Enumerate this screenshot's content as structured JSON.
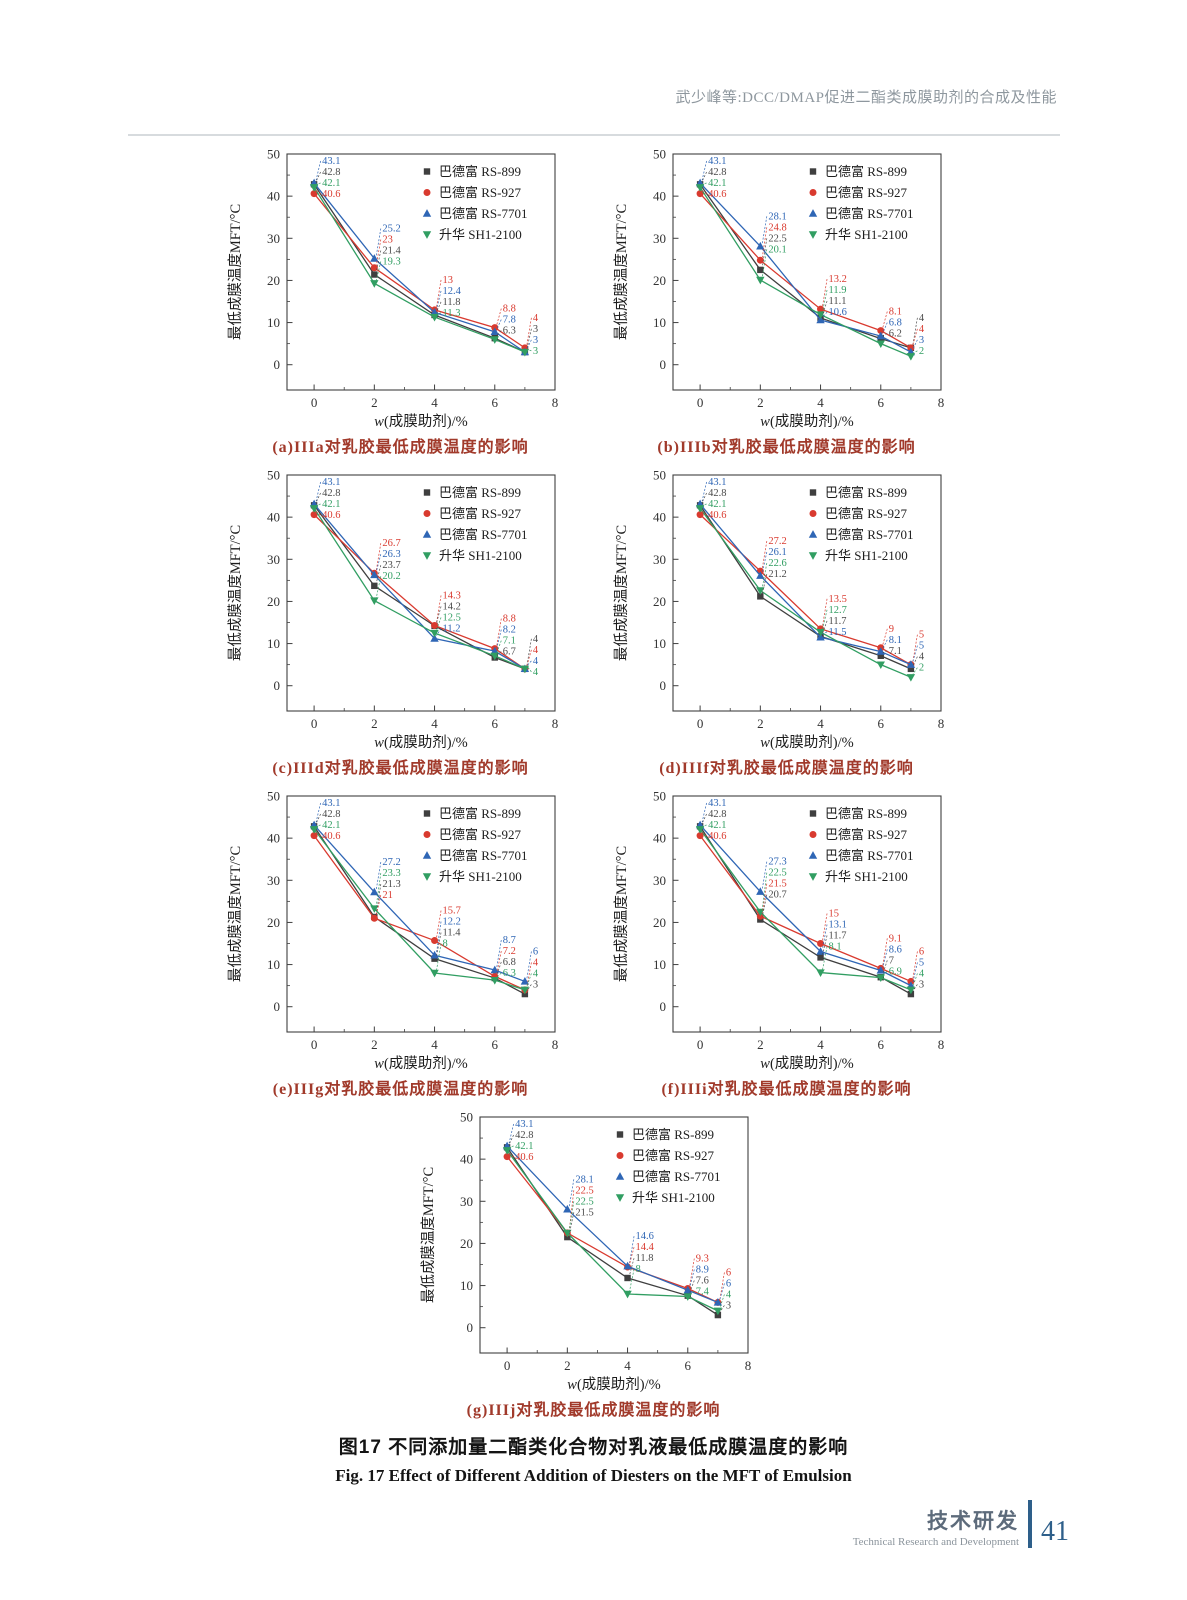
{
  "page": {
    "header": {
      "title": "武少峰等:DCC/DMAP促进二酯类成膜助剂的合成及性能"
    },
    "figure_title_zh": "图17  不同添加量二酯类化合物对乳液最低成膜温度的影响",
    "figure_title_en": "Fig. 17  Effect of Different Addition of Diesters on the MFT of Emulsion",
    "footer": {
      "label_zh": "技术研发",
      "label_en": "Technical Research and Development",
      "page_number": "41"
    }
  },
  "chart_common": {
    "type": "line",
    "x": [
      0,
      2,
      4,
      6,
      7
    ],
    "xlabel": "w(成膜助剂)/%",
    "ylabel": "最低成膜温度MFT/°C",
    "xticks": [
      0,
      2,
      4,
      6,
      8
    ],
    "xminor": [
      1,
      3,
      5,
      7
    ],
    "yticks": [
      0,
      10,
      20,
      30,
      40,
      50
    ],
    "yminor": [
      5,
      15,
      25,
      35,
      45
    ],
    "xlim": [
      -0.9,
      8
    ],
    "ylim": [
      -6,
      50
    ],
    "grid": false,
    "legend_position": "top-right",
    "series_meta": [
      {
        "name": "巴德富 RS-899",
        "color": "#3f3f3f",
        "label_color": "#4a4a4a",
        "marker": "square"
      },
      {
        "name": "巴德富 RS-927",
        "color": "#d93a2f",
        "label_color": "#d93a2f",
        "marker": "circle"
      },
      {
        "name": "巴德富 RS-7701",
        "color": "#2f66b5",
        "label_color": "#2f66b5",
        "marker": "triangle-up"
      },
      {
        "name": "升华 SH1-2100",
        "color": "#319e62",
        "label_color": "#319e62",
        "marker": "triangle-down"
      }
    ]
  },
  "chart_data": [
    {
      "caption": {
        "prefix": "(a)",
        "code": "IIIa",
        "text": "对乳胶最低成膜温度的影响"
      },
      "series": [
        {
          "name": "巴德富 RS-899",
          "values": [
            42.8,
            21.4,
            11.8,
            6.3,
            3
          ],
          "labels": [
            "42.8",
            "21.4",
            "11.8",
            "6.3",
            "3"
          ]
        },
        {
          "name": "巴德富 RS-927",
          "values": [
            40.6,
            23,
            13,
            8.8,
            4
          ],
          "labels": [
            "40.6",
            "23",
            "13",
            "8.8",
            "4"
          ]
        },
        {
          "name": "巴德富 RS-7701",
          "values": [
            43.1,
            25.2,
            12.4,
            7.8,
            3
          ],
          "labels": [
            "43.1",
            "25.2",
            "12.4",
            "7.8",
            "3"
          ]
        },
        {
          "name": "升华 SH1-2100",
          "values": [
            42.1,
            19.3,
            11.3,
            6,
            3
          ],
          "labels": [
            "42.1",
            "19.3",
            "11.3",
            "",
            "3"
          ]
        }
      ]
    },
    {
      "caption": {
        "prefix": "(b)",
        "code": "IIIb",
        "text": "对乳胶最低成膜温度的影响"
      },
      "series": [
        {
          "name": "巴德富 RS-899",
          "values": [
            42.8,
            22.5,
            11.1,
            6.2,
            4
          ],
          "labels": [
            "42.8",
            "22.5",
            "11.1",
            "6.2",
            "4"
          ]
        },
        {
          "name": "巴德富 RS-927",
          "values": [
            40.6,
            24.8,
            13.2,
            8.1,
            4
          ],
          "labels": [
            "40.6",
            "24.8",
            "13.2",
            "8.1",
            "4"
          ]
        },
        {
          "name": "巴德富 RS-7701",
          "values": [
            43.1,
            28.1,
            10.6,
            6.8,
            3
          ],
          "labels": [
            "43.1",
            "28.1",
            "10.6",
            "6.8",
            "3"
          ]
        },
        {
          "name": "升华 SH1-2100",
          "values": [
            42.1,
            20.1,
            11.9,
            5,
            2
          ],
          "labels": [
            "42.1",
            "20.1",
            "11.9",
            "",
            "2"
          ]
        }
      ]
    },
    {
      "caption": {
        "prefix": "(c)",
        "code": "IIId",
        "text": "对乳胶最低成膜温度的影响"
      },
      "series": [
        {
          "name": "巴德富 RS-899",
          "values": [
            42.8,
            23.7,
            14.2,
            6.7,
            4
          ],
          "labels": [
            "42.8",
            "23.7",
            "14.2",
            "6.7",
            "4"
          ]
        },
        {
          "name": "巴德富 RS-927",
          "values": [
            40.6,
            26.7,
            14.3,
            8.8,
            4
          ],
          "labels": [
            "40.6",
            "26.7",
            "14.3",
            "8.8",
            "4"
          ]
        },
        {
          "name": "巴德富 RS-7701",
          "values": [
            43.1,
            26.3,
            11.2,
            8.2,
            4
          ],
          "labels": [
            "43.1",
            "26.3",
            "11.2",
            "8.2",
            "4"
          ]
        },
        {
          "name": "升华 SH1-2100",
          "values": [
            42.1,
            20.2,
            12.5,
            7.1,
            4
          ],
          "labels": [
            "42.1",
            "20.2",
            "12.5",
            "7.1",
            "4"
          ]
        }
      ]
    },
    {
      "caption": {
        "prefix": "(d)",
        "code": "IIIf",
        "text": "对乳胶最低成膜温度的影响"
      },
      "series": [
        {
          "name": "巴德富 RS-899",
          "values": [
            42.8,
            21.2,
            11.7,
            7.1,
            4
          ],
          "labels": [
            "42.8",
            "21.2",
            "11.7",
            "7.1",
            "4"
          ]
        },
        {
          "name": "巴德富 RS-927",
          "values": [
            40.6,
            27.2,
            13.5,
            9,
            5
          ],
          "labels": [
            "40.6",
            "27.2",
            "13.5",
            "9",
            "5"
          ]
        },
        {
          "name": "巴德富 RS-7701",
          "values": [
            43.1,
            26.1,
            11.5,
            8.1,
            5
          ],
          "labels": [
            "43.1",
            "26.1",
            "11.5",
            "8.1",
            "5"
          ]
        },
        {
          "name": "升华 SH1-2100",
          "values": [
            42.1,
            22.6,
            12.7,
            5,
            2
          ],
          "labels": [
            "42.1",
            "22.6",
            "12.7",
            "",
            "2"
          ]
        }
      ]
    },
    {
      "caption": {
        "prefix": "(e)",
        "code": "IIIg",
        "text": "对乳胶最低成膜温度的影响"
      },
      "series": [
        {
          "name": "巴德富 RS-899",
          "values": [
            42.8,
            21.3,
            11.4,
            6.8,
            3
          ],
          "labels": [
            "42.8",
            "21.3",
            "11.4",
            "6.8",
            "3"
          ]
        },
        {
          "name": "巴德富 RS-927",
          "values": [
            40.6,
            21,
            15.7,
            7.2,
            4
          ],
          "labels": [
            "40.6",
            "21",
            "15.7",
            "7.2",
            "4"
          ]
        },
        {
          "name": "巴德富 RS-7701",
          "values": [
            43.1,
            27.2,
            12.2,
            8.7,
            6
          ],
          "labels": [
            "43.1",
            "27.2",
            "12.2",
            "8.7",
            "6"
          ]
        },
        {
          "name": "升华 SH1-2100",
          "values": [
            42.1,
            23.3,
            8,
            6.3,
            4
          ],
          "labels": [
            "42.1",
            "23.3",
            "8",
            "6.3",
            "4"
          ]
        }
      ]
    },
    {
      "caption": {
        "prefix": "(f)",
        "code": "IIIi",
        "text": "对乳胶最低成膜温度的影响"
      },
      "series": [
        {
          "name": "巴德富 RS-899",
          "values": [
            42.8,
            20.7,
            11.7,
            7,
            3
          ],
          "labels": [
            "42.8",
            "20.7",
            "11.7",
            "7",
            "3"
          ]
        },
        {
          "name": "巴德富 RS-927",
          "values": [
            40.6,
            21.5,
            15,
            9.1,
            6
          ],
          "labels": [
            "40.6",
            "21.5",
            "15",
            "9.1",
            "6"
          ]
        },
        {
          "name": "巴德富 RS-7701",
          "values": [
            43.1,
            27.3,
            13.1,
            8.6,
            5
          ],
          "labels": [
            "43.1",
            "27.3",
            "13.1",
            "8.6",
            "5"
          ]
        },
        {
          "name": "升华 SH1-2100",
          "values": [
            42.1,
            22.5,
            8.1,
            6.9,
            4
          ],
          "labels": [
            "42.1",
            "22.5",
            "8.1",
            "6.9",
            "4"
          ]
        }
      ]
    },
    {
      "caption": {
        "prefix": "(g)",
        "code": "IIIj",
        "text": "对乳胶最低成膜温度的影响"
      },
      "series": [
        {
          "name": "巴德富 RS-899",
          "values": [
            42.8,
            21.5,
            11.8,
            7.6,
            3
          ],
          "labels": [
            "42.8",
            "21.5",
            "11.8",
            "7.6",
            "3"
          ]
        },
        {
          "name": "巴德富 RS-927",
          "values": [
            40.6,
            22.5,
            14.4,
            9.3,
            6
          ],
          "labels": [
            "40.6",
            "22.5",
            "14.4",
            "9.3",
            "6"
          ]
        },
        {
          "name": "巴德富 RS-7701",
          "values": [
            43.1,
            28.1,
            14.6,
            8.9,
            6
          ],
          "labels": [
            "43.1",
            "28.1",
            "14.6",
            "8.9",
            "6"
          ]
        },
        {
          "name": "升华 SH1-2100",
          "values": [
            42.1,
            22.5,
            8,
            7.4,
            4
          ],
          "labels": [
            "42.1",
            "22.5",
            "8",
            "7.4",
            "4"
          ]
        }
      ]
    }
  ]
}
